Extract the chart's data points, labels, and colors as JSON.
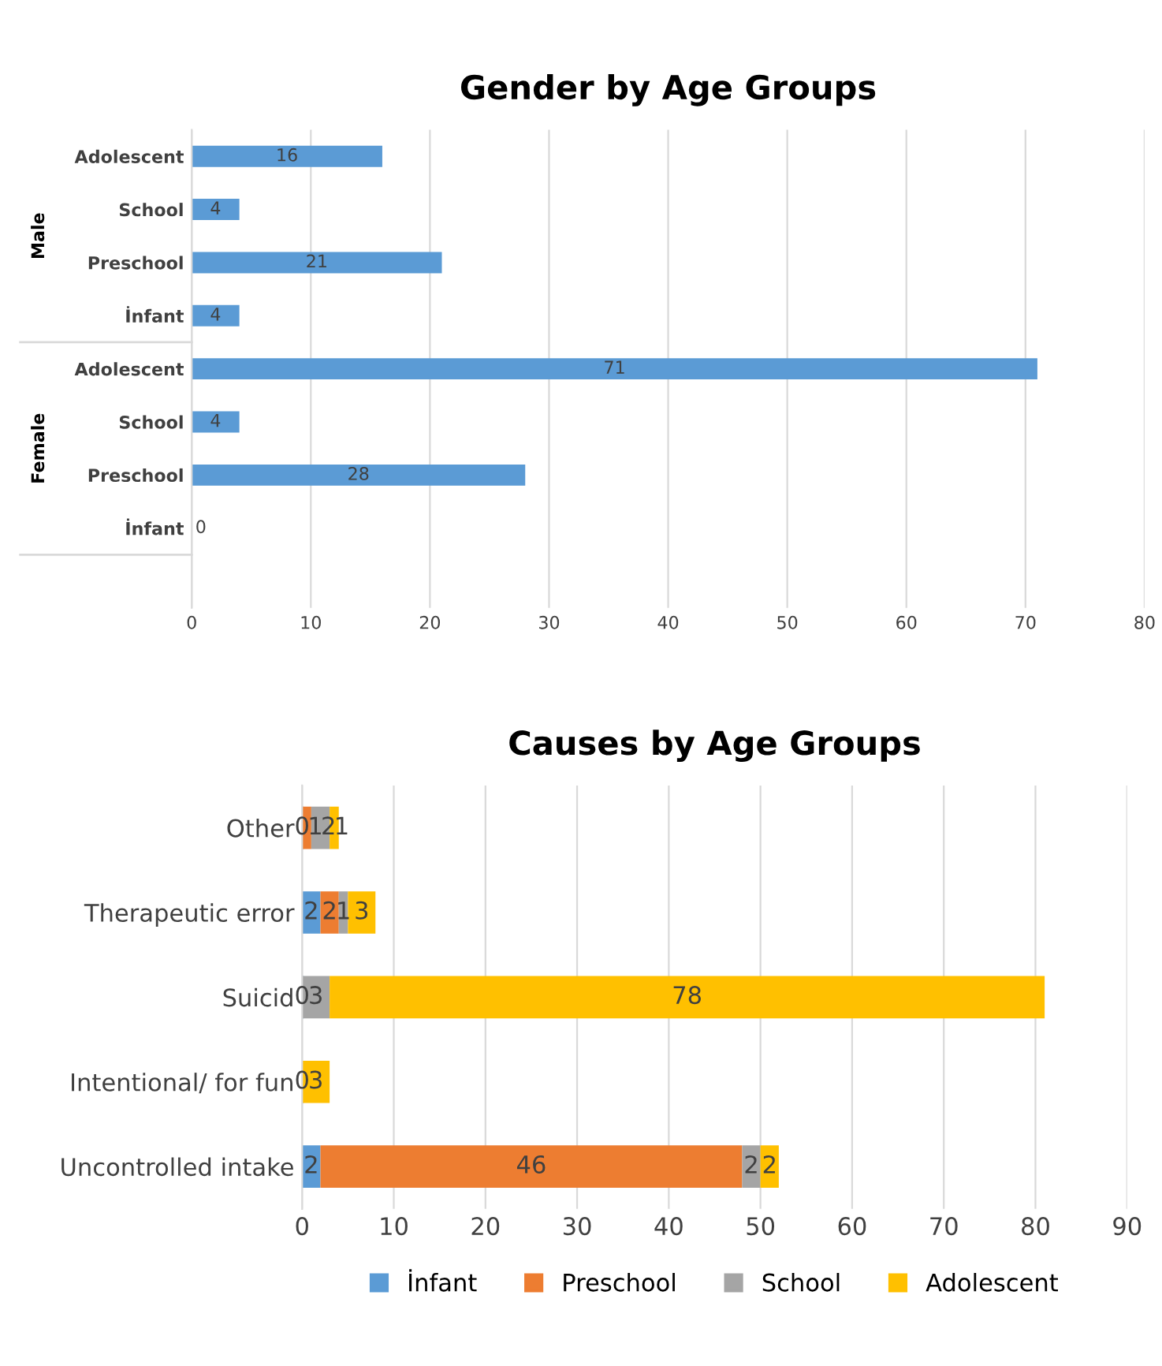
{
  "chart_data": [
    {
      "type": "bar",
      "orientation": "horizontal",
      "title": "Gender by Age Groups",
      "categories": [
        "Adolescent",
        "School",
        "Preschool",
        "İnfant",
        "Adolescent",
        "School",
        "Preschool",
        "İnfant",
        null
      ],
      "values": [
        16,
        4,
        21,
        4,
        71,
        4,
        28,
        0,
        null
      ],
      "color": "#5b9bd5",
      "xlim": [
        0,
        80
      ],
      "xticks": [
        0,
        10,
        20,
        30,
        40,
        50,
        60,
        70,
        80
      ],
      "grid": "x",
      "data_labels": true,
      "legend": false,
      "annotations": [
        "Male",
        "Female"
      ]
    },
    {
      "type": "bar",
      "orientation": "horizontal",
      "stacked": true,
      "title": "Causes by Age Groups",
      "categories": [
        "Other",
        "Therapeutic error",
        "Suicid",
        "Intentional/ for fun",
        "Uncontrolled intake"
      ],
      "series": [
        {
          "name": "İnfant",
          "color": "#5b9bd5",
          "values": [
            0,
            2,
            0,
            0,
            2
          ],
          "value_labels": [
            "0",
            "2",
            "0",
            "0",
            "2"
          ]
        },
        {
          "name": "Preschool",
          "color": "#ed7d31",
          "values": [
            1,
            2,
            null,
            null,
            46
          ],
          "value_labels": [
            "1",
            "2",
            null,
            null,
            "46"
          ]
        },
        {
          "name": "School",
          "color": "#a5a5a5",
          "values": [
            2,
            1,
            3,
            null,
            2
          ],
          "value_labels": [
            "2",
            "1",
            "3",
            null,
            "2"
          ]
        },
        {
          "name": "Adolescent",
          "color": "#ffc000",
          "values": [
            1,
            3,
            78,
            3,
            2
          ],
          "value_labels": [
            "1",
            "3",
            "78",
            "3",
            "2"
          ]
        }
      ],
      "xlim": [
        0,
        90
      ],
      "xticks": [
        0,
        10,
        20,
        30,
        40,
        50,
        60,
        70,
        80,
        90
      ],
      "grid": "x",
      "legend": "bottom"
    }
  ]
}
